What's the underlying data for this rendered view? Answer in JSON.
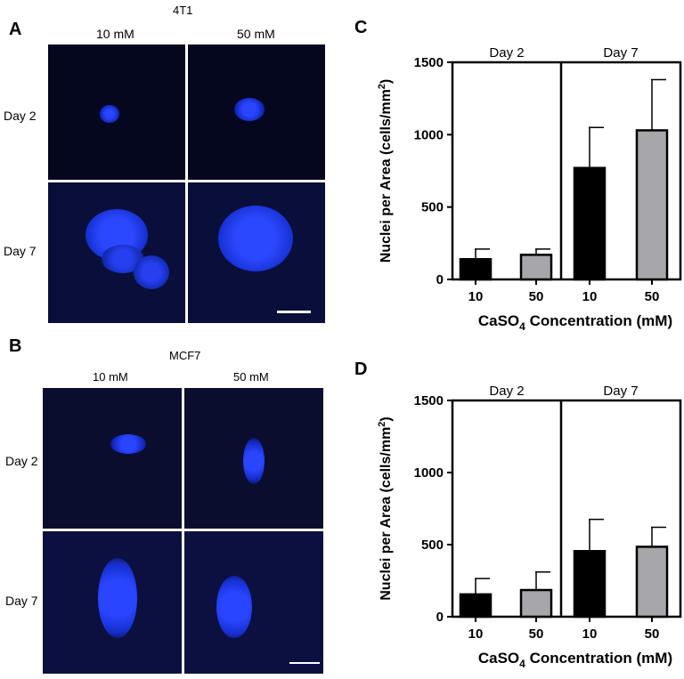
{
  "panels": {
    "A": {
      "letter": "A",
      "cell_line": "4T1",
      "col_labels": [
        "10 mM",
        "50 mM"
      ],
      "row_labels": [
        "Day 2",
        "Day 7"
      ]
    },
    "B": {
      "letter": "B",
      "cell_line": "MCF7",
      "col_labels": [
        "10 mM",
        "50 mM"
      ],
      "row_labels": [
        "Day 2",
        "Day 7"
      ]
    },
    "C": {
      "letter": "C"
    },
    "D": {
      "letter": "D"
    }
  },
  "colors": {
    "bar_10": "#000000",
    "bar_50": "#a7a6ab",
    "nuclei": "#1530ff",
    "image_bg": "#05071f"
  },
  "chart_data": [
    {
      "panel": "C",
      "type": "bar",
      "xlabel": "CaSO4 Concentration (mM)",
      "ylabel": "Nuclei per  Area (cells/mm2)",
      "ylim": [
        0,
        1500
      ],
      "yticks": [
        0,
        500,
        1000,
        1500
      ],
      "groups": [
        {
          "label": "Day 2",
          "categories": [
            "10",
            "50"
          ],
          "values": [
            140,
            170
          ],
          "errors": [
            70,
            40
          ]
        },
        {
          "label": "Day 7",
          "categories": [
            "10",
            "50"
          ],
          "values": [
            770,
            1030
          ],
          "errors": [
            280,
            350
          ]
        }
      ]
    },
    {
      "panel": "D",
      "type": "bar",
      "xlabel": "CaSO4 Concentration (mM)",
      "ylabel": "Nuclei per  Area (cells/mm2)",
      "ylim": [
        0,
        1500
      ],
      "yticks": [
        0,
        500,
        1000,
        1500
      ],
      "groups": [
        {
          "label": "Day 2",
          "categories": [
            "10",
            "50"
          ],
          "values": [
            155,
            185
          ],
          "errors": [
            110,
            125
          ]
        },
        {
          "label": "Day 7",
          "categories": [
            "10",
            "50"
          ],
          "values": [
            455,
            485
          ],
          "errors": [
            220,
            135
          ]
        }
      ]
    }
  ]
}
